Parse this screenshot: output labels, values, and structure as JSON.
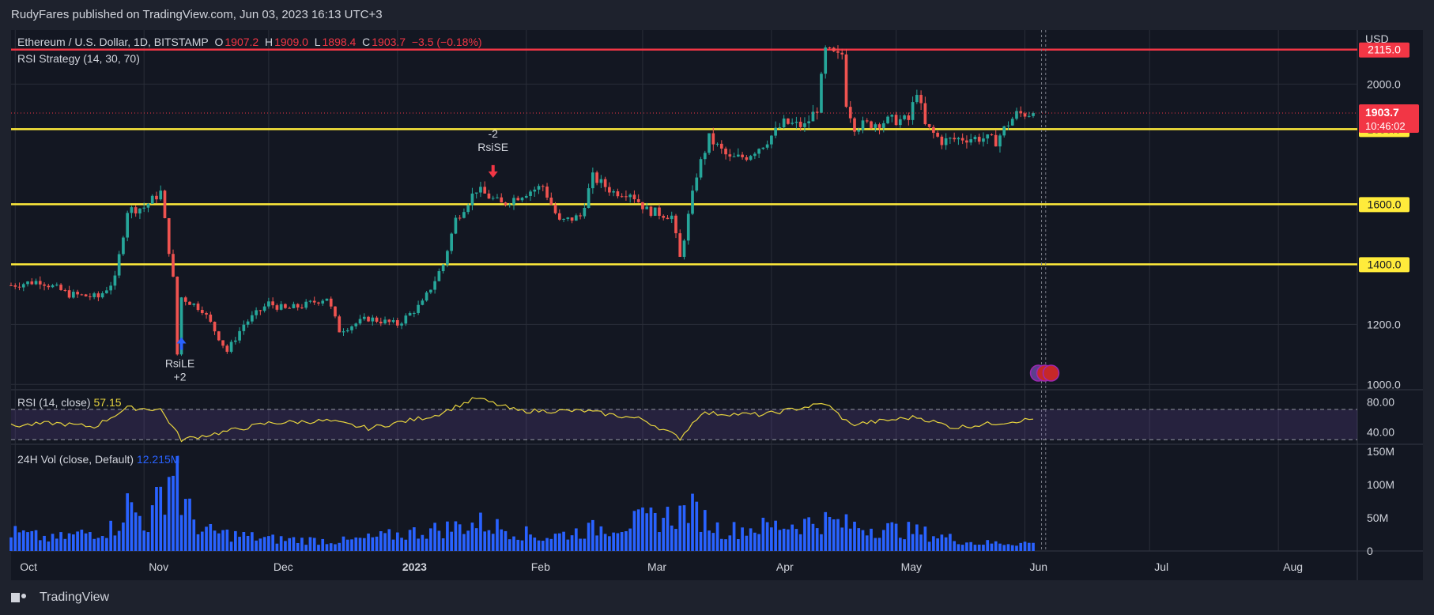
{
  "header": {
    "publisher": "RudyFares published on TradingView.com, Jun 03, 2023 16:13 UTC+3"
  },
  "footer": {
    "brand": "TradingView"
  },
  "legend": {
    "symbol": "Ethereum / U.S. Dollar, 1D, BITSTAMP",
    "open_label": "O",
    "open": "1907.2",
    "high_label": "H",
    "high": "1909.0",
    "low_label": "L",
    "low": "1898.4",
    "close_label": "C",
    "close": "1903.7",
    "change": "−3.5 (−0.18%)",
    "strategy": "RSI Strategy (14, 30, 70)",
    "rsi_title": "RSI (14, close)",
    "rsi_value": "57.15",
    "vol_title": "24H Vol (close, Default)",
    "vol_value": "12.215M"
  },
  "colors": {
    "background": "#131722",
    "grid": "#2a2e39",
    "text": "#d1d4dc",
    "up": "#26a69a",
    "down": "#ef5350",
    "hline_red": "#f23645",
    "hline_yellow": "#ffeb3b",
    "rsi": "#e6d33e",
    "rsi_band": "#7e57c2",
    "volume": "#2962ff"
  },
  "chart_data": [
    {
      "type": "candlestick",
      "panel": "price",
      "currency": "USD",
      "y_ticks": [
        1000,
        1200,
        1400,
        1600,
        1850,
        2000,
        2115
      ],
      "ylim": [
        985,
        2180
      ],
      "x_labels": [
        "Oct",
        "Nov",
        "Dec",
        "2023",
        "Feb",
        "Mar",
        "Apr",
        "May",
        "Jun",
        "Jul",
        "Aug"
      ],
      "x_label_dates": [
        "2022-10-01",
        "2022-11-01",
        "2022-12-01",
        "2023-01-01",
        "2023-02-01",
        "2023-03-01",
        "2023-04-01",
        "2023-05-01",
        "2023-06-01",
        "2023-07-01",
        "2023-08-01"
      ],
      "start_date": "2022-09-30",
      "horizontal_levels": [
        {
          "price": 2115.0,
          "color": "red"
        },
        {
          "price": 1850.0,
          "color": "yellow"
        },
        {
          "price": 1600.0,
          "color": "yellow"
        },
        {
          "price": 1400.0,
          "color": "yellow"
        }
      ],
      "last_price": 1903.7,
      "last_price_countdown": "10:46:02",
      "key_points": [
        [
          "2022-09-30",
          1330
        ],
        [
          "2022-10-07",
          1345
        ],
        [
          "2022-10-14",
          1300
        ],
        [
          "2022-10-21",
          1290
        ],
        [
          "2022-10-25",
          1350
        ],
        [
          "2022-10-28",
          1580
        ],
        [
          "2022-11-01",
          1590
        ],
        [
          "2022-11-05",
          1640
        ],
        [
          "2022-11-08",
          1350
        ],
        [
          "2022-11-09",
          1100
        ],
        [
          "2022-11-10",
          1290
        ],
        [
          "2022-11-15",
          1250
        ],
        [
          "2022-11-21",
          1110
        ],
        [
          "2022-11-25",
          1200
        ],
        [
          "2022-12-01",
          1270
        ],
        [
          "2022-12-05",
          1250
        ],
        [
          "2022-12-10",
          1265
        ],
        [
          "2022-12-15",
          1290
        ],
        [
          "2022-12-18",
          1180
        ],
        [
          "2022-12-25",
          1220
        ],
        [
          "2023-01-01",
          1200
        ],
        [
          "2023-01-07",
          1270
        ],
        [
          "2023-01-12",
          1400
        ],
        [
          "2023-01-15",
          1550
        ],
        [
          "2023-01-20",
          1650
        ],
        [
          "2023-01-26",
          1600
        ],
        [
          "2023-02-01",
          1640
        ],
        [
          "2023-02-05",
          1660
        ],
        [
          "2023-02-09",
          1540
        ],
        [
          "2023-02-14",
          1560
        ],
        [
          "2023-02-17",
          1690
        ],
        [
          "2023-02-22",
          1640
        ],
        [
          "2023-02-26",
          1640
        ],
        [
          "2023-03-02",
          1580
        ],
        [
          "2023-03-08",
          1560
        ],
        [
          "2023-03-10",
          1420
        ],
        [
          "2023-03-12",
          1560
        ],
        [
          "2023-03-14",
          1700
        ],
        [
          "2023-03-17",
          1820
        ],
        [
          "2023-03-22",
          1750
        ],
        [
          "2023-03-26",
          1760
        ],
        [
          "2023-03-30",
          1800
        ],
        [
          "2023-04-04",
          1870
        ],
        [
          "2023-04-09",
          1860
        ],
        [
          "2023-04-12",
          1920
        ],
        [
          "2023-04-14",
          2110
        ],
        [
          "2023-04-17",
          2090
        ],
        [
          "2023-04-18",
          2100
        ],
        [
          "2023-04-19",
          1940
        ],
        [
          "2023-04-21",
          1860
        ],
        [
          "2023-04-26",
          1870
        ],
        [
          "2023-04-30",
          1880
        ],
        [
          "2023-05-04",
          1880
        ],
        [
          "2023-05-06",
          1980
        ],
        [
          "2023-05-08",
          1860
        ],
        [
          "2023-05-12",
          1810
        ],
        [
          "2023-05-17",
          1820
        ],
        [
          "2023-05-22",
          1820
        ],
        [
          "2023-05-25",
          1810
        ],
        [
          "2023-05-28",
          1870
        ],
        [
          "2023-05-30",
          1900
        ],
        [
          "2023-06-03",
          1903.7
        ]
      ],
      "annotations": [
        {
          "text_top": "RsiLE",
          "text_bottom": "+2",
          "date": "2022-11-10",
          "direction": "long"
        },
        {
          "text_top": "-2",
          "text_bottom": "RsiSE",
          "date": "2023-01-24",
          "direction": "short"
        }
      ]
    },
    {
      "type": "line",
      "panel": "rsi",
      "series": [
        {
          "name": "RSI (14, close)"
        }
      ],
      "y_ticks": [
        40.0,
        80.0
      ],
      "y_tick_labels": [
        "40.00",
        "80.00"
      ],
      "upper_band": 70,
      "lower_band": 30,
      "ylim": [
        25,
        95
      ],
      "key_points": [
        [
          "2022-09-30",
          48
        ],
        [
          "2022-10-10",
          52
        ],
        [
          "2022-10-20",
          47
        ],
        [
          "2022-10-28",
          72
        ],
        [
          "2022-11-05",
          70
        ],
        [
          "2022-11-10",
          30
        ],
        [
          "2022-11-20",
          40
        ],
        [
          "2022-12-01",
          52
        ],
        [
          "2022-12-15",
          55
        ],
        [
          "2022-12-25",
          45
        ],
        [
          "2023-01-10",
          62
        ],
        [
          "2023-01-20",
          85
        ],
        [
          "2023-01-30",
          68
        ],
        [
          "2023-02-15",
          68
        ],
        [
          "2023-03-01",
          57
        ],
        [
          "2023-03-10",
          32
        ],
        [
          "2023-03-15",
          65
        ],
        [
          "2023-03-30",
          63
        ],
        [
          "2023-04-14",
          78
        ],
        [
          "2023-04-20",
          50
        ],
        [
          "2023-05-06",
          60
        ],
        [
          "2023-05-15",
          46
        ],
        [
          "2023-05-25",
          52
        ],
        [
          "2023-06-03",
          57.15
        ]
      ]
    },
    {
      "type": "bar",
      "panel": "volume",
      "series": [
        {
          "name": "24H Vol (close, Default)"
        }
      ],
      "y_ticks": [
        0,
        50,
        100,
        150
      ],
      "y_tick_labels": [
        "0",
        "50M",
        "100M",
        "150M"
      ],
      "ylim": [
        0,
        150
      ],
      "last_value": "12.215M",
      "key_points": [
        [
          "2022-09-30",
          28
        ],
        [
          "2022-10-10",
          18
        ],
        [
          "2022-10-25",
          35
        ],
        [
          "2022-10-28",
          70
        ],
        [
          "2022-11-02",
          40
        ],
        [
          "2022-11-09",
          143
        ],
        [
          "2022-11-10",
          75
        ],
        [
          "2022-11-15",
          30
        ],
        [
          "2022-12-01",
          18
        ],
        [
          "2022-12-20",
          15
        ],
        [
          "2023-01-14",
          35
        ],
        [
          "2023-01-21",
          42
        ],
        [
          "2023-02-05",
          20
        ],
        [
          "2023-03-10",
          55
        ],
        [
          "2023-03-12",
          65
        ],
        [
          "2023-03-20",
          30
        ],
        [
          "2023-04-14",
          45
        ],
        [
          "2023-04-20",
          38
        ],
        [
          "2023-05-05",
          30
        ],
        [
          "2023-05-20",
          12
        ],
        [
          "2023-06-03",
          12.215
        ]
      ]
    }
  ]
}
